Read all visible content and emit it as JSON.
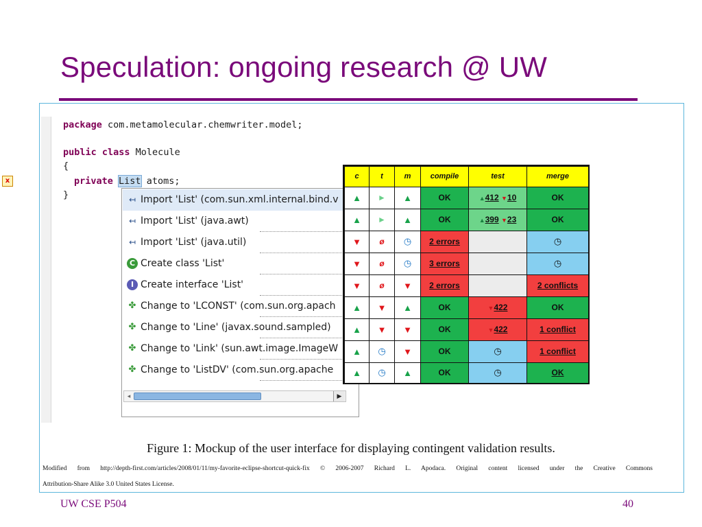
{
  "slide": {
    "title": "Speculation: ongoing research @ UW",
    "footer_left": "UW CSE P504",
    "footer_right": "40"
  },
  "editor": {
    "line1_kw": "package",
    "line1_rest": " com.metamolecular.chemwriter.model;",
    "line2_kw": "public class",
    "line2_rest": " Molecule",
    "line3": "{",
    "line4_kw": "private",
    "line4_sel": "List",
    "line4_rest": " atoms;",
    "line5": "}"
  },
  "quickfix": {
    "items": [
      {
        "icon": "import-icon",
        "label": "Import 'List' (com.sun.xml.internal.bind.v"
      },
      {
        "icon": "import-icon",
        "label": "Import 'List' (java.awt)"
      },
      {
        "icon": "import-icon",
        "label": "Import 'List' (java.util)"
      },
      {
        "icon": "create-class-icon",
        "label": "Create class 'List'"
      },
      {
        "icon": "create-interface-icon",
        "label": "Create interface 'List'"
      },
      {
        "icon": "change-icon",
        "label": "Change to 'LCONST' (com.sun.org.apach"
      },
      {
        "icon": "change-icon",
        "label": "Change to 'Line' (javax.sound.sampled)"
      },
      {
        "icon": "change-icon",
        "label": "Change to 'Link' (sun.awt.image.ImageW"
      },
      {
        "icon": "change-icon",
        "label": "Change to 'ListDV' (com.sun.org.apache"
      }
    ]
  },
  "status_table": {
    "headers": [
      "c",
      "t",
      "m",
      "compile",
      "test",
      "merge"
    ],
    "rows": [
      {
        "c": "▲",
        "t": "►",
        "m": "▲",
        "compile": "OK",
        "test_pass": "412",
        "test_fail": "10",
        "merge": "OK"
      },
      {
        "c": "▲",
        "t": "►",
        "m": "▲",
        "compile": "OK",
        "test_pass": "399",
        "test_fail": "23",
        "merge": "OK"
      },
      {
        "c": "▼",
        "t": "ø",
        "m": "◷",
        "compile": "2 errors",
        "test": "",
        "merge": "◷"
      },
      {
        "c": "▼",
        "t": "ø",
        "m": "◷",
        "compile": "3 errors",
        "test": "",
        "merge": "◷"
      },
      {
        "c": "▼",
        "t": "ø",
        "m": "▼",
        "compile": "2 errors",
        "test": "",
        "merge": "2 conflicts"
      },
      {
        "c": "▲",
        "t": "▼",
        "m": "▲",
        "compile": "OK",
        "test_fail": "422",
        "merge": "OK"
      },
      {
        "c": "▲",
        "t": "▼",
        "m": "▼",
        "compile": "OK",
        "test_fail": "422",
        "merge": "1 conflict"
      },
      {
        "c": "▲",
        "t": "◷",
        "m": "▼",
        "compile": "OK",
        "test": "◷",
        "merge": "1 conflict"
      },
      {
        "c": "▲",
        "t": "◷",
        "m": "▲",
        "compile": "OK",
        "test": "◷",
        "merge": "OK"
      }
    ],
    "colors": {
      "header": "#ffff00",
      "green": "#1db24f",
      "light_green": "#6dd58a",
      "red": "#f23f3f",
      "blue": "#86cff0"
    }
  },
  "figure": {
    "caption": "Figure 1: Mockup of the user interface for displaying contingent validation results.",
    "credit_line1": "Modified from http://depth-first.com/articles/2008/01/11/my-favorite-eclipse-shortcut-quick-fix © 2006-2007 Richard L. Apodaca. Original content licensed under the Creative Commons",
    "credit_line2": "Attribution-Share Alike 3.0 United States License."
  }
}
